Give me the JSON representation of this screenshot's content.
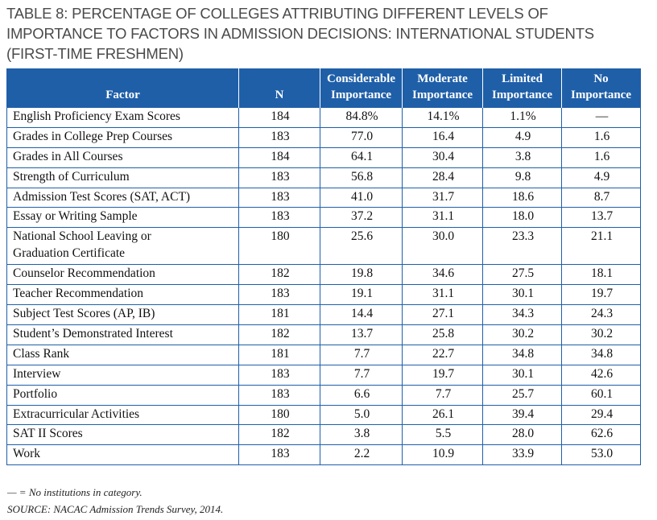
{
  "title_lines": [
    "TABLE 8: PERCENTAGE OF COLLEGES ATTRIBUTING DIFFERENT LEVELS OF",
    "IMPORTANCE TO FACTORS IN ADMISSION DECISIONS: INTERNATIONAL STUDENTS",
    "(FIRST-TIME FRESHMEN)"
  ],
  "columns": [
    {
      "line1": "",
      "line2": "Factor"
    },
    {
      "line1": "",
      "line2": "N"
    },
    {
      "line1": "Considerable",
      "line2": "Importance"
    },
    {
      "line1": "Moderate",
      "line2": "Importance"
    },
    {
      "line1": "Limited",
      "line2": "Importance"
    },
    {
      "line1": "No",
      "line2": "Importance"
    }
  ],
  "rows": [
    [
      "English Proficiency Exam Scores",
      "184",
      "84.8%",
      "14.1%",
      "1.1%",
      "—"
    ],
    [
      "Grades in College Prep Courses",
      "183",
      "77.0",
      "16.4",
      "4.9",
      "1.6"
    ],
    [
      "Grades in All Courses",
      "184",
      "64.1",
      "30.4",
      "3.8",
      "1.6"
    ],
    [
      "Strength of Curriculum",
      "183",
      "56.8",
      "28.4",
      "9.8",
      "4.9"
    ],
    [
      "Admission Test Scores (SAT, ACT)",
      "183",
      "41.0",
      "31.7",
      "18.6",
      "8.7"
    ],
    [
      "Essay or Writing Sample",
      "183",
      "37.2",
      "31.1",
      "18.0",
      "13.7"
    ],
    [
      "National School Leaving or Graduation Certificate",
      "180",
      "25.6",
      "30.0",
      "23.3",
      "21.1"
    ],
    [
      "Counselor Recommendation",
      "182",
      "19.8",
      "34.6",
      "27.5",
      "18.1"
    ],
    [
      "Teacher Recommendation",
      "183",
      "19.1",
      "31.1",
      "30.1",
      "19.7"
    ],
    [
      "Subject Test Scores (AP, IB)",
      "181",
      "14.4",
      "27.1",
      "34.3",
      "24.3"
    ],
    [
      "Student’s Demonstrated Interest",
      "182",
      "13.7",
      "25.8",
      "30.2",
      "30.2"
    ],
    [
      "Class Rank",
      "181",
      "7.7",
      "22.7",
      "34.8",
      "34.8"
    ],
    [
      "Interview",
      "183",
      "7.7",
      "19.7",
      "30.1",
      "42.6"
    ],
    [
      "Portfolio",
      "183",
      "6.6",
      "7.7",
      "25.7",
      "60.1"
    ],
    [
      "Extracurricular Activities",
      "180",
      "5.0",
      "26.1",
      "39.4",
      "29.4"
    ],
    [
      "SAT II Scores",
      "182",
      "3.8",
      "5.5",
      "28.0",
      "62.6"
    ],
    [
      "Work",
      "183",
      "2.2",
      "10.9",
      "33.9",
      "53.0"
    ]
  ],
  "notes": {
    "legend": "— = No institutions in category.",
    "source": "SOURCE: NACAC Admission Trends Survey, 2014."
  },
  "colors": {
    "header_background": "#1f5fa8",
    "header_text": "#ffffff",
    "grid_lines": "#1f5fa8",
    "title_text": "#4a4a4a"
  }
}
